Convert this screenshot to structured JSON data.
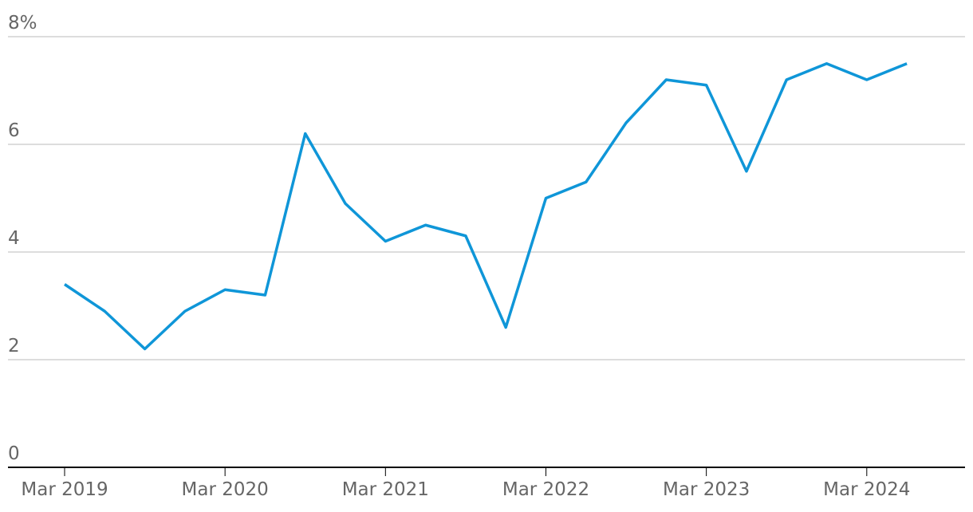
{
  "chart_data": {
    "type": "line",
    "categories": [
      "Mar 2019",
      null,
      null,
      null,
      "Mar 2020",
      null,
      null,
      null,
      "Mar 2021",
      null,
      null,
      null,
      "Mar 2022",
      null,
      null,
      null,
      "Mar 2023",
      null,
      null,
      null,
      "Mar 2024",
      null
    ],
    "values": [
      3.4,
      2.9,
      2.2,
      2.9,
      3.3,
      3.2,
      6.2,
      4.9,
      4.2,
      4.5,
      4.3,
      2.6,
      5.0,
      5.3,
      6.4,
      7.2,
      7.1,
      5.5,
      7.2,
      7.5,
      7.2,
      7.5
    ],
    "color": "#0f96d8",
    "ylim": [
      0,
      8
    ],
    "yticks": [
      0,
      2,
      4,
      6,
      {
        "value": 8,
        "label": "8%"
      }
    ],
    "grid": true
  }
}
